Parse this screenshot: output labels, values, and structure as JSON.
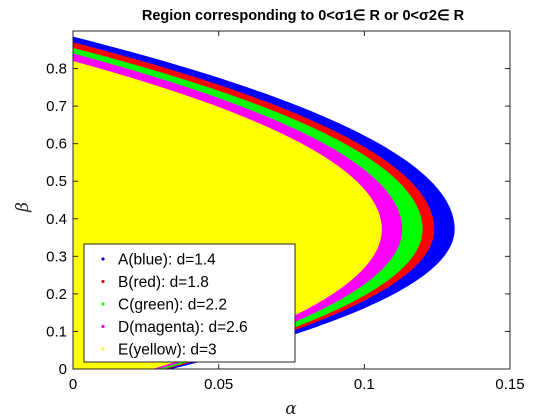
{
  "chart_data": {
    "type": "area",
    "title": "Region corresponding to 0<σ1∈ R or 0<σ2∈ R",
    "xlabel": "α",
    "ylabel": "β",
    "xlim": [
      0,
      0.15
    ],
    "ylim": [
      0,
      0.9
    ],
    "xticks": [
      "0",
      "0.05",
      "0.1",
      "0.15"
    ],
    "yticks": [
      "0",
      "0.1",
      "0.2",
      "0.3",
      "0.4",
      "0.5",
      "0.6",
      "0.7",
      "0.8"
    ],
    "legend_placement": "bottom-left",
    "series": [
      {
        "name": "A(blue): d=1.4",
        "color": "#0000ff",
        "beta_top": 0.885,
        "beta_bottom": 0.0,
        "alpha_max": 0.131,
        "beta_at_alpha_max": 0.372
      },
      {
        "name": "B(red): d=1.8",
        "color": "#ff0000",
        "beta_top": 0.87,
        "beta_bottom": 0.0,
        "alpha_max": 0.124,
        "beta_at_alpha_max": 0.372
      },
      {
        "name": "C(green): d=2.2",
        "color": "#00ff00",
        "beta_top": 0.855,
        "beta_bottom": 0.0,
        "alpha_max": 0.12,
        "beta_at_alpha_max": 0.372
      },
      {
        "name": "D(magenta): d=2.6",
        "color": "#ff00ff",
        "beta_top": 0.84,
        "beta_bottom": 0.0,
        "alpha_max": 0.113,
        "beta_at_alpha_max": 0.372
      },
      {
        "name": "E(yellow): d=3",
        "color": "#ffff00",
        "beta_top": 0.82,
        "beta_bottom": 0.0,
        "alpha_max": 0.106,
        "beta_at_alpha_max": 0.372
      }
    ]
  }
}
